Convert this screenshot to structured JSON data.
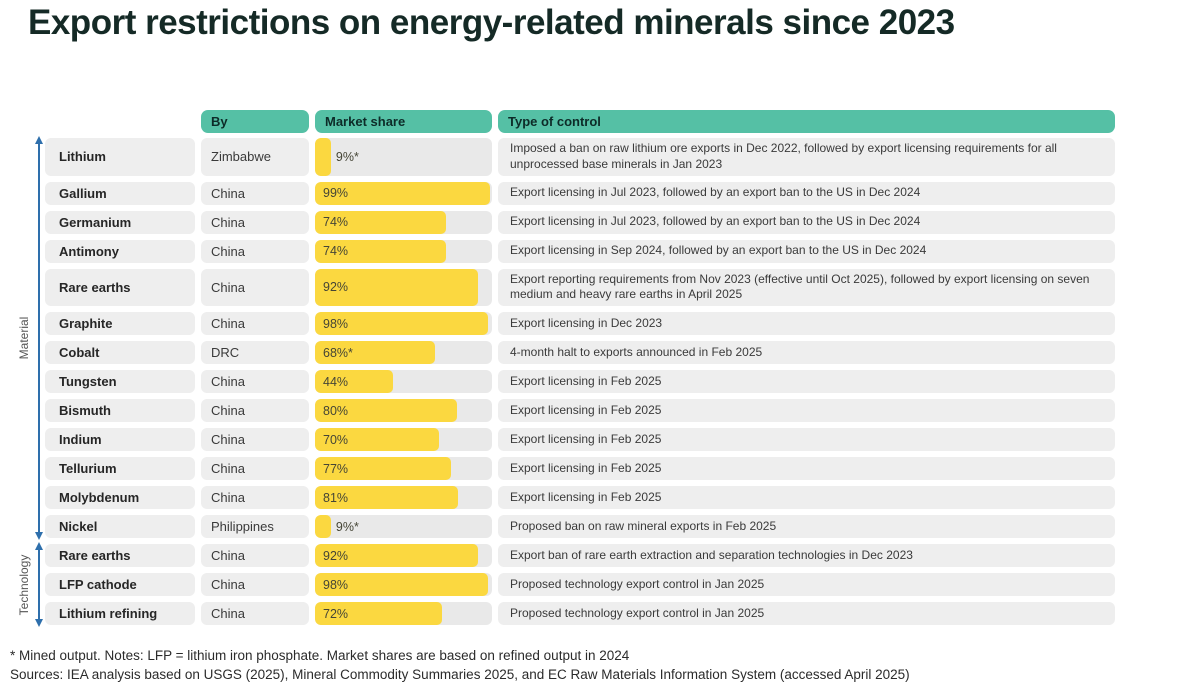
{
  "chart_data": {
    "type": "table",
    "title": "Export restrictions on energy-related minerals since 2023",
    "columns": {
      "by": "By",
      "market_share": "Market share",
      "type_of_control": "Type of control"
    },
    "bar": {
      "unit": "%",
      "range": [
        0,
        100
      ],
      "color": "#fbd840"
    },
    "row_groups": [
      {
        "label": "Material",
        "count": 13
      },
      {
        "label": "Technology",
        "count": 3
      }
    ],
    "rows": [
      {
        "group": "Material",
        "item": "Lithium",
        "by": "Zimbabwe",
        "market_share_pct": 9,
        "market_share_label": "9%*",
        "type_of_control": "Imposed a ban on raw lithium ore exports in Dec 2022, followed by export licensing requirements for all unprocessed base minerals in Jan 2023"
      },
      {
        "group": "Material",
        "item": "Gallium",
        "by": "China",
        "market_share_pct": 99,
        "market_share_label": "99%",
        "type_of_control": "Export licensing in Jul 2023, followed by an export ban to the US in Dec 2024"
      },
      {
        "group": "Material",
        "item": "Germanium",
        "by": "China",
        "market_share_pct": 74,
        "market_share_label": "74%",
        "type_of_control": "Export licensing in Jul 2023, followed by an export ban to the US in Dec 2024"
      },
      {
        "group": "Material",
        "item": "Antimony",
        "by": "China",
        "market_share_pct": 74,
        "market_share_label": "74%",
        "type_of_control": "Export licensing in Sep 2024, followed by an export ban to the US in Dec 2024"
      },
      {
        "group": "Material",
        "item": "Rare earths",
        "by": "China",
        "market_share_pct": 92,
        "market_share_label": "92%",
        "type_of_control": "Export reporting requirements from Nov 2023 (effective until Oct 2025), followed by export licensing on seven medium and heavy rare earths in April 2025"
      },
      {
        "group": "Material",
        "item": "Graphite",
        "by": "China",
        "market_share_pct": 98,
        "market_share_label": "98%",
        "type_of_control": "Export licensing in Dec 2023"
      },
      {
        "group": "Material",
        "item": "Cobalt",
        "by": "DRC",
        "market_share_pct": 68,
        "market_share_label": "68%*",
        "type_of_control": "4-month halt to exports announced in Feb 2025"
      },
      {
        "group": "Material",
        "item": "Tungsten",
        "by": "China",
        "market_share_pct": 44,
        "market_share_label": "44%",
        "type_of_control": "Export licensing in Feb 2025"
      },
      {
        "group": "Material",
        "item": "Bismuth",
        "by": "China",
        "market_share_pct": 80,
        "market_share_label": "80%",
        "type_of_control": "Export licensing in Feb 2025"
      },
      {
        "group": "Material",
        "item": "Indium",
        "by": "China",
        "market_share_pct": 70,
        "market_share_label": "70%",
        "type_of_control": "Export licensing in Feb 2025"
      },
      {
        "group": "Material",
        "item": "Tellurium",
        "by": "China",
        "market_share_pct": 77,
        "market_share_label": "77%",
        "type_of_control": "Export licensing in Feb 2025"
      },
      {
        "group": "Material",
        "item": "Molybdenum",
        "by": "China",
        "market_share_pct": 81,
        "market_share_label": "81%",
        "type_of_control": "Export licensing in Feb 2025"
      },
      {
        "group": "Material",
        "item": "Nickel",
        "by": "Philippines",
        "market_share_pct": 9,
        "market_share_label": "9%*",
        "type_of_control": "Proposed ban on raw mineral exports in Feb 2025"
      },
      {
        "group": "Technology",
        "item": "Rare earths",
        "by": "China",
        "market_share_pct": 92,
        "market_share_label": "92%",
        "type_of_control": "Export ban of rare earth extraction and separation technologies in Dec 2023"
      },
      {
        "group": "Technology",
        "item": "LFP cathode",
        "by": "China",
        "market_share_pct": 98,
        "market_share_label": "98%",
        "type_of_control": "Proposed technology export control in Jan 2025"
      },
      {
        "group": "Technology",
        "item": "Lithium refining",
        "by": "China",
        "market_share_pct": 72,
        "market_share_label": "72%",
        "type_of_control": "Proposed technology export control in Jan 2025"
      }
    ]
  },
  "footnote": "* Mined output. Notes: LFP = lithium iron phosphate. Market shares are based on refined output in 2024",
  "sources": "Sources: IEA analysis based on USGS (2025), Mineral Commodity Summaries 2025, and EC Raw Materials Information System (accessed April 2025)",
  "colors": {
    "header_teal": "#55c0a5",
    "bar_yellow": "#fbd840",
    "row_gray": "#eeeeee",
    "arrow_blue": "#2e6fac",
    "title_dark": "#152a26"
  }
}
